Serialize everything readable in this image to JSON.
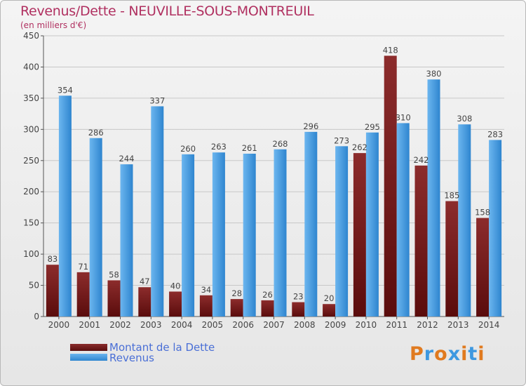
{
  "chart_data": {
    "type": "bar",
    "title": "Revenus/Dette - NEUVILLE-SOUS-MONTREUIL",
    "subtitle": "(en milliers d'€)",
    "categories": [
      "2000",
      "2001",
      "2002",
      "2003",
      "2004",
      "2005",
      "2006",
      "2007",
      "2008",
      "2009",
      "2010",
      "2011",
      "2012",
      "2013",
      "2014"
    ],
    "series": [
      {
        "name": "Montant de la Dette",
        "color": "#7a1f1f",
        "values": [
          83,
          71,
          58,
          47,
          40,
          34,
          28,
          26,
          23,
          20,
          262,
          418,
          242,
          185,
          158
        ]
      },
      {
        "name": "Revenus",
        "color": "#3d98e0",
        "values": [
          354,
          286,
          244,
          337,
          260,
          263,
          261,
          268,
          296,
          273,
          295,
          310,
          380,
          308,
          283
        ]
      }
    ],
    "ylim": [
      0,
      450
    ],
    "yticks": [
      0,
      50,
      100,
      150,
      200,
      250,
      300,
      350,
      400,
      450
    ],
    "grid": true,
    "legend": "bottom-left",
    "xlabel": "",
    "ylabel": ""
  },
  "logo": {
    "text": "Proxiti",
    "colors": [
      "#e07a1f",
      "#3d98e0",
      "#e07a1f",
      "#3d98e0",
      "#e07a1f",
      "#3d98e0",
      "#e07a1f"
    ]
  }
}
